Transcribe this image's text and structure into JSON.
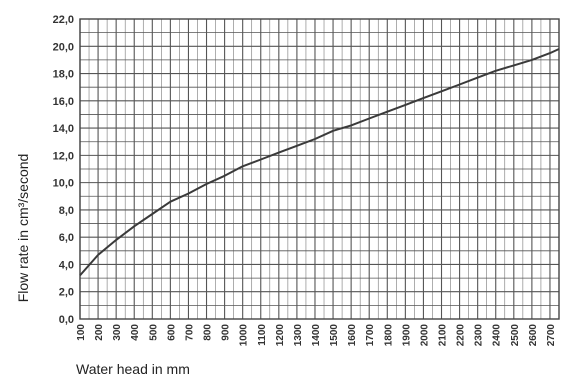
{
  "chart_data": {
    "type": "line",
    "xlabel": "Water head in mm",
    "ylabel": "Flow rate in cm³/second",
    "x_ticks": [
      "100",
      "200",
      "300",
      "400",
      "500",
      "600",
      "700",
      "800",
      "900",
      "1000",
      "1100",
      "1200",
      "1300",
      "1400",
      "1500",
      "1600",
      "1700",
      "1800",
      "1900",
      "2000",
      "2100",
      "2200",
      "2300",
      "2400",
      "2500",
      "2600",
      "2700"
    ],
    "y_ticks": [
      "0,0",
      "2,0",
      "4,0",
      "6,0",
      "8,0",
      "10,0",
      "12,0",
      "14,0",
      "16,0",
      "18,0",
      "20,0",
      "22,0"
    ],
    "xlim": [
      100,
      2750
    ],
    "ylim": [
      0,
      22
    ],
    "grid": true,
    "series": [
      {
        "x": [
          100,
          200,
          300,
          400,
          500,
          600,
          700,
          800,
          900,
          1000,
          1100,
          1200,
          1300,
          1400,
          1500,
          1600,
          1700,
          1800,
          1900,
          2000,
          2100,
          2200,
          2300,
          2400,
          2500,
          2600,
          2700,
          2750
        ],
        "y": [
          3.2,
          4.7,
          5.8,
          6.8,
          7.7,
          8.6,
          9.2,
          9.9,
          10.5,
          11.2,
          11.7,
          12.2,
          12.7,
          13.2,
          13.8,
          14.2,
          14.7,
          15.2,
          15.7,
          16.2,
          16.7,
          17.2,
          17.7,
          18.2,
          18.6,
          19.0,
          19.5,
          19.8
        ]
      }
    ],
    "colors": {
      "line": "#3a3a3a",
      "grid": "#555555",
      "frame": "#444444"
    }
  }
}
